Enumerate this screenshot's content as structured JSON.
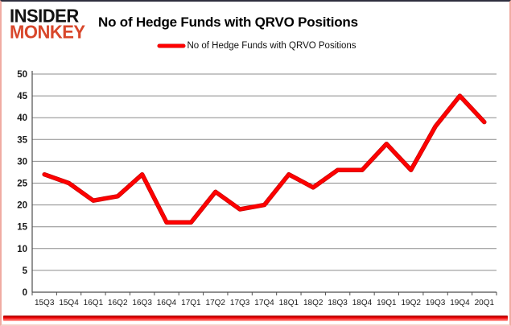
{
  "header": {
    "logo_line1": "INSIDER",
    "logo_line2": "MONKEY",
    "title": "No of Hedge Funds with QRVO Positions"
  },
  "legend": {
    "label": "No of Hedge Funds with QRVO Positions"
  },
  "colors": {
    "series_red": "#ff0000",
    "logo_red": "#d8472b",
    "gridline_gray": "#8c8c8c",
    "axis_gray": "#4d4d4d",
    "tick_label": "#1a1a1a",
    "frame_pink": "#f0aca3",
    "bottom_bar_red": "#e80000"
  },
  "chart_data": {
    "type": "line",
    "title": "No of Hedge Funds with QRVO Positions",
    "categories": [
      "15Q3",
      "15Q4",
      "16Q1",
      "16Q2",
      "16Q3",
      "16Q4",
      "17Q1",
      "17Q2",
      "17Q3",
      "17Q4",
      "18Q1",
      "18Q2",
      "18Q3",
      "18Q4",
      "19Q1",
      "19Q2",
      "19Q3",
      "19Q4",
      "20Q1"
    ],
    "series": [
      {
        "name": "No of Hedge Funds with QRVO Positions",
        "color": "#ff0000",
        "values": [
          27,
          25,
          21,
          22,
          27,
          16,
          16,
          23,
          19,
          20,
          27,
          24,
          28,
          28,
          34,
          28,
          38,
          45,
          39
        ]
      }
    ],
    "xlabel": "",
    "ylabel": "",
    "ylim": [
      0,
      50
    ],
    "ytick_step": 5,
    "grid": true,
    "legend_position": "top-center"
  }
}
